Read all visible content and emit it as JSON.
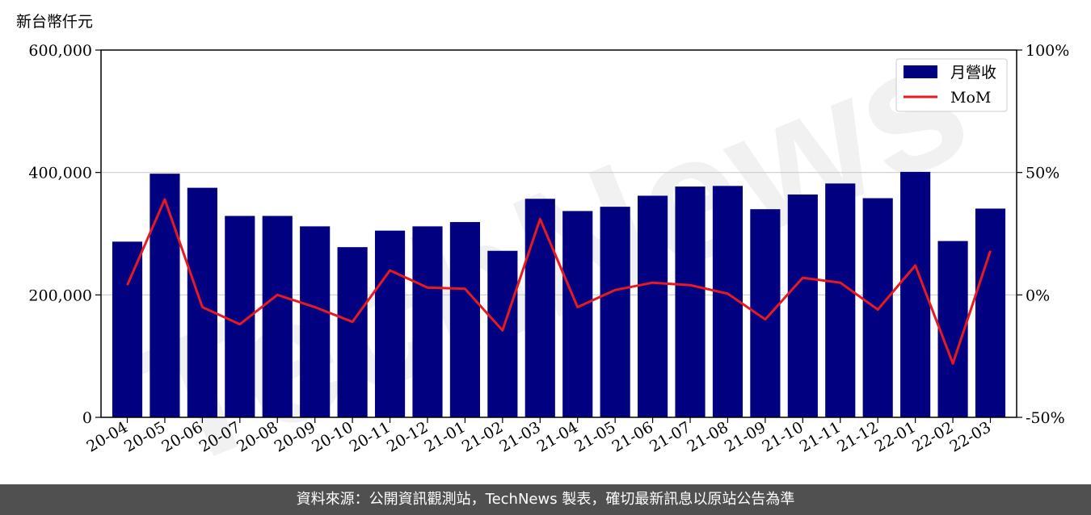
{
  "chart_data": {
    "type": "bar",
    "ylabel_unit": "新台幣仟元",
    "categories": [
      "20-04",
      "20-05",
      "20-06",
      "20-07",
      "20-08",
      "20-09",
      "20-10",
      "20-11",
      "20-12",
      "21-01",
      "21-02",
      "21-03",
      "21-04",
      "21-05",
      "21-06",
      "21-07",
      "21-08",
      "21-09",
      "21-10",
      "21-11",
      "21-12",
      "22-01",
      "22-02",
      "22-03"
    ],
    "series": [
      {
        "name": "月營收",
        "type": "bar",
        "color": "#000080",
        "values": [
          287000,
          398000,
          375000,
          329000,
          329000,
          312000,
          278000,
          305000,
          312000,
          319000,
          272000,
          357000,
          337000,
          344000,
          362000,
          377000,
          378000,
          340000,
          364000,
          382000,
          358000,
          401000,
          288000,
          341000
        ]
      },
      {
        "name": "MoM",
        "type": "line",
        "color": "#e8191f",
        "axis": "right",
        "values": [
          4,
          39,
          -5,
          -12,
          0,
          -5,
          -11,
          10,
          3,
          2.5,
          -14.5,
          31,
          -5,
          2,
          5,
          4,
          0.5,
          -10,
          7,
          5,
          -6,
          12,
          -28,
          18
        ]
      }
    ],
    "ylim": [
      0,
      600000
    ],
    "yticks": [
      "0",
      "200,000",
      "400,000",
      "600,000"
    ],
    "y2lim": [
      -50,
      100
    ],
    "y2ticks": [
      "-50%",
      "0%",
      "50%",
      "100%"
    ],
    "grid": true,
    "legend_position": "upper-right"
  },
  "watermark": "TechNews",
  "footer": "資料來源：公開資訊觀測站，TechNews 製表，確切最新訊息以原站公告為準"
}
